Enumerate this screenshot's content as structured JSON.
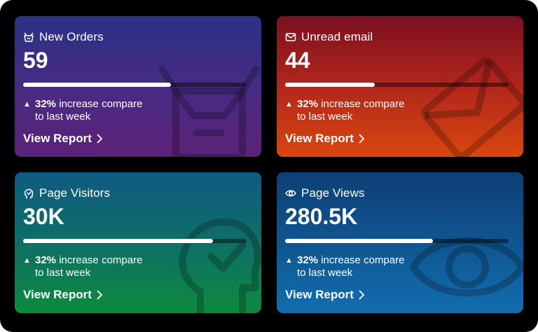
{
  "cards": [
    {
      "title": "New Orders",
      "value": "59",
      "progress": 0.66,
      "change_pct": "32%",
      "change_text": "increase compare",
      "change_text2": "to last week",
      "link": "View Report",
      "icon": "basket-icon",
      "bg_icon": "box-icon"
    },
    {
      "title": "Unread email",
      "value": "44",
      "progress": 0.4,
      "change_pct": "32%",
      "change_text": "increase compare",
      "change_text2": "to last week",
      "link": "View Report",
      "icon": "mail-icon",
      "bg_icon": "envelope-icon"
    },
    {
      "title": "Page Visitors",
      "value": "30K",
      "progress": 0.85,
      "change_pct": "32%",
      "change_text": "increase compare",
      "change_text2": "to last week",
      "link": "View Report",
      "icon": "head-check-icon",
      "bg_icon": "head-check-icon"
    },
    {
      "title": "Page Views",
      "value": "280.5K",
      "progress": 0.66,
      "change_pct": "32%",
      "change_text": "increase compare",
      "change_text2": "to last week",
      "link": "View Report",
      "icon": "eye-icon",
      "bg_icon": "eye-icon"
    }
  ]
}
